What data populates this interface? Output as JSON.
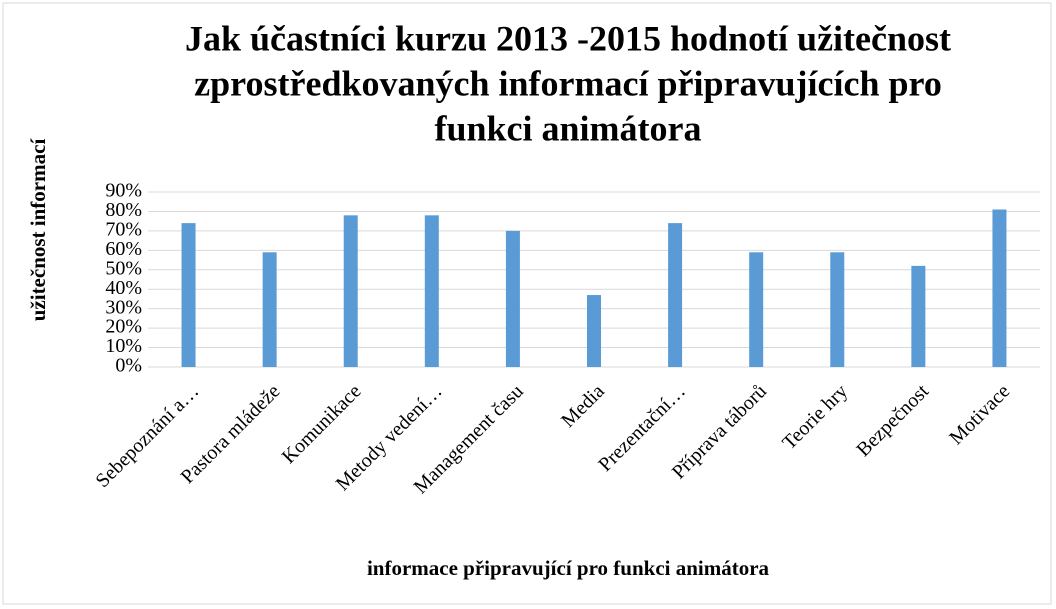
{
  "chart_data": {
    "type": "bar",
    "title": [
      "Jak účastníci kurzu 2013 -2015 hodnotí užitečnost",
      "zprostředkovaných informací připravujících pro",
      "funkci animátora"
    ],
    "x_label": "informace připravující pro funkci animátora",
    "y_label": "užitečnost informací",
    "categories": [
      "Sebepoznání a…",
      "Pastora mládeže",
      "Komunikace",
      "Metody vedení…",
      "Management času",
      "Media",
      "Prezentační…",
      "Příprava táborů",
      "Teorie hry",
      "Bezpečnost",
      "Motivace"
    ],
    "values": [
      74,
      59,
      78,
      78,
      70,
      37,
      74,
      59,
      59,
      52,
      81
    ],
    "color": "#5b9bd5",
    "ylim": [
      0,
      90
    ],
    "yticks": [
      {
        "value": 0,
        "label": "0%"
      },
      {
        "value": 10,
        "label": "10%"
      },
      {
        "value": 20,
        "label": "20%"
      },
      {
        "value": 30,
        "label": "30%"
      },
      {
        "value": 40,
        "label": "40%"
      },
      {
        "value": 50,
        "label": "50%"
      },
      {
        "value": 60,
        "label": "60%"
      },
      {
        "value": 70,
        "label": "70%"
      },
      {
        "value": 80,
        "label": "80%"
      },
      {
        "value": 90,
        "label": "90%"
      }
    ],
    "grid": true
  }
}
